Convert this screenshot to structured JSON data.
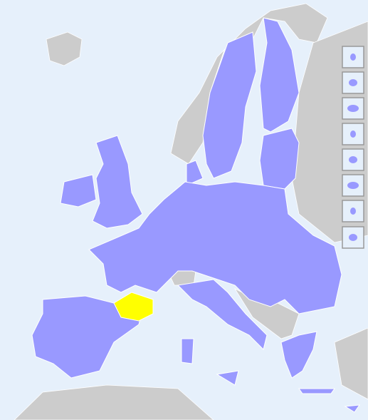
{
  "map": {
    "sea_color": "#e6f0fb",
    "land_color": "#cccccc",
    "region_color": "#9999ff",
    "highlight_color": "#ffff00",
    "border_color": "#ffffff"
  }
}
